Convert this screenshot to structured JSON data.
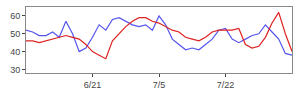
{
  "chart_data": {
    "type": "line",
    "categories": [
      null,
      null,
      null,
      null,
      null,
      null,
      null,
      null,
      null,
      null,
      "6/21",
      null,
      null,
      null,
      null,
      null,
      null,
      null,
      null,
      null,
      "7/5",
      null,
      null,
      null,
      null,
      null,
      null,
      null,
      null,
      null,
      "7/22",
      null,
      null,
      null,
      null,
      null,
      null,
      null,
      null,
      null,
      null
    ],
    "series": [
      {
        "color": "#5555ee",
        "values": [
          52,
          51,
          49,
          49,
          51,
          48,
          57,
          50,
          40,
          42,
          48,
          55,
          52,
          58,
          59,
          57,
          55,
          54,
          55,
          52,
          60,
          55,
          47,
          44,
          41,
          42,
          41,
          44,
          47,
          52,
          53,
          47,
          45,
          47,
          49,
          50,
          55,
          51,
          47,
          39,
          38
        ]
      },
      {
        "color": "#dd2222",
        "values": [
          46,
          46,
          45,
          46,
          47,
          48,
          49,
          48,
          47,
          44,
          40,
          38,
          36,
          46,
          50,
          54,
          57,
          59,
          59,
          57,
          56,
          54,
          52,
          51,
          48,
          47,
          46,
          48,
          51,
          52,
          52,
          52,
          53,
          44,
          42,
          43,
          48,
          56,
          62,
          50,
          40
        ]
      }
    ],
    "ylim": [
      28,
      65
    ],
    "yticks": [
      30,
      40,
      50,
      60
    ],
    "grid": false
  }
}
